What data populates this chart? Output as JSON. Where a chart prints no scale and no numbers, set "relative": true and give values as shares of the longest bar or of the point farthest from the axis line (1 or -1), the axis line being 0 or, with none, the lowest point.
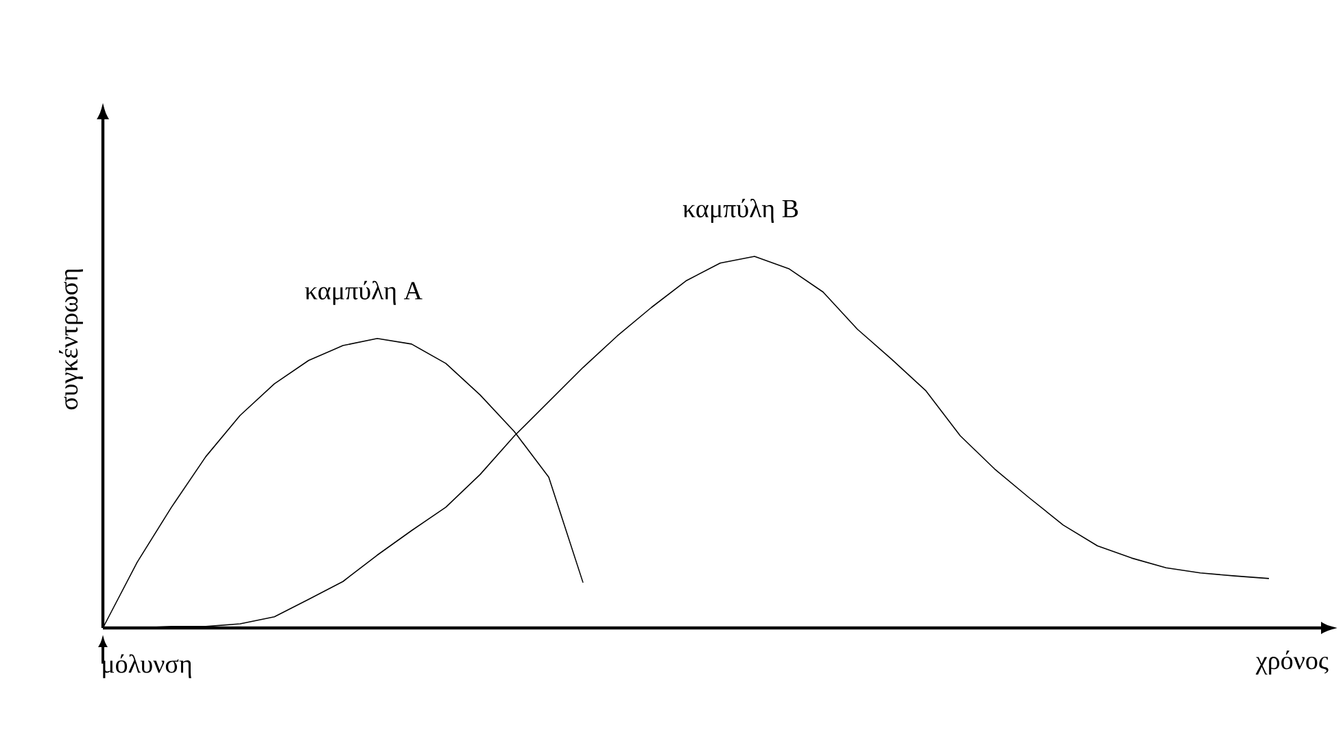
{
  "chart_data": {
    "type": "line",
    "relative": true,
    "xlabel": "χρόνος",
    "ylabel": "συγκέντρωση",
    "categories": [
      null,
      null,
      null,
      null,
      null,
      null,
      null,
      null,
      null,
      null,
      null,
      null,
      null,
      null,
      null,
      null,
      null,
      null,
      null,
      null,
      null,
      null,
      null,
      null,
      null,
      null,
      null,
      null,
      null,
      null,
      null,
      null,
      null,
      null,
      null
    ],
    "series": [
      {
        "name": "καμπύλη Α",
        "color": "#000000",
        "values": [
          0,
          0.177,
          0.325,
          0.461,
          0.572,
          0.657,
          0.72,
          0.76,
          0.779,
          0.764,
          0.712,
          0.627,
          0.528,
          0.406,
          0.122,
          null,
          null,
          null,
          null,
          null,
          null,
          null,
          null,
          null,
          null,
          null,
          null,
          null,
          null,
          null,
          null,
          null,
          null,
          null,
          null
        ]
      },
      {
        "name": "καμπύλη Β",
        "color": "#000000",
        "values": [
          0,
          0,
          0.004,
          0.004,
          0.011,
          0.03,
          0.077,
          0.125,
          0.196,
          0.262,
          0.325,
          0.413,
          0.517,
          0.609,
          0.701,
          0.786,
          0.863,
          0.934,
          0.982,
          1,
          0.967,
          0.904,
          0.804,
          0.723,
          0.638,
          0.517,
          0.428,
          0.351,
          0.277,
          0.221,
          0.188,
          0.162,
          0.148,
          0.14,
          0.133
        ]
      }
    ],
    "annotations": [
      "μόλυνση"
    ],
    "marker": "none",
    "line_style": "solid"
  }
}
